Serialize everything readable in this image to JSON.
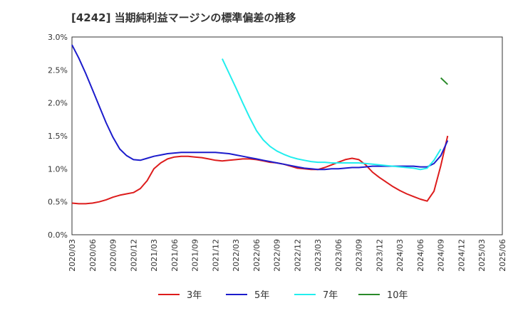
{
  "chart_data": {
    "type": "line",
    "title": "[4242]  当期純利益マージンの標準偏差の推移",
    "xlabel": "",
    "ylabel": "",
    "ylim": [
      0,
      3.0
    ],
    "y_ticks": [
      "0.0%",
      "0.5%",
      "1.0%",
      "1.5%",
      "2.0%",
      "2.5%",
      "3.0%"
    ],
    "y_tick_values": [
      0,
      0.5,
      1.0,
      1.5,
      2.0,
      2.5,
      3.0
    ],
    "x_ticks": [
      "2020/03",
      "2020/06",
      "2020/09",
      "2020/12",
      "2021/03",
      "2021/06",
      "2021/09",
      "2021/12",
      "2022/03",
      "2022/06",
      "2022/09",
      "2022/12",
      "2023/03",
      "2023/06",
      "2023/09",
      "2023/12",
      "2024/03",
      "2024/06",
      "2024/09",
      "2024/12",
      "2025/03",
      "2025/06"
    ],
    "grid": true,
    "legend_position": "bottom",
    "series": [
      {
        "name": "3年",
        "color": "#dd1c1c",
        "start_index": 0,
        "values": [
          0.48,
          0.47,
          0.47,
          0.48,
          0.5,
          0.53,
          0.57,
          0.6,
          0.62,
          0.64,
          0.7,
          0.82,
          1.0,
          1.09,
          1.15,
          1.18,
          1.19,
          1.19,
          1.18,
          1.17,
          1.15,
          1.13,
          1.12,
          1.13,
          1.14,
          1.15,
          1.15,
          1.14,
          1.12,
          1.1,
          1.09,
          1.07,
          1.04,
          1.01,
          1.0,
          0.99,
          0.99,
          1.02,
          1.06,
          1.1,
          1.14,
          1.16,
          1.14,
          1.06,
          0.95,
          0.87,
          0.8,
          0.73,
          0.67,
          0.62,
          0.58,
          0.54,
          0.51,
          0.66,
          1.05,
          1.5
        ]
      },
      {
        "name": "5年",
        "color": "#1c1ccc",
        "start_index": 0,
        "values": [
          2.88,
          2.68,
          2.45,
          2.2,
          1.95,
          1.7,
          1.48,
          1.3,
          1.2,
          1.14,
          1.13,
          1.16,
          1.19,
          1.21,
          1.23,
          1.24,
          1.25,
          1.25,
          1.25,
          1.25,
          1.25,
          1.25,
          1.24,
          1.23,
          1.21,
          1.19,
          1.17,
          1.15,
          1.13,
          1.11,
          1.09,
          1.07,
          1.05,
          1.03,
          1.01,
          1.0,
          0.99,
          0.99,
          1.0,
          1.0,
          1.01,
          1.02,
          1.02,
          1.03,
          1.04,
          1.04,
          1.04,
          1.04,
          1.04,
          1.04,
          1.04,
          1.03,
          1.03,
          1.08,
          1.2,
          1.43
        ]
      },
      {
        "name": "7年",
        "color": "#22eeee",
        "start_index": 22,
        "values": [
          2.67,
          2.45,
          2.23,
          2.0,
          1.78,
          1.58,
          1.44,
          1.34,
          1.27,
          1.22,
          1.18,
          1.15,
          1.13,
          1.11,
          1.1,
          1.1,
          1.09,
          1.09,
          1.09,
          1.09,
          1.09,
          1.08,
          1.07,
          1.06,
          1.05,
          1.04,
          1.03,
          1.02,
          1.01,
          0.99,
          1.01,
          1.13,
          1.3
        ]
      },
      {
        "name": "10年",
        "color": "#2a8a2a",
        "start_index": 54,
        "values": [
          2.38,
          2.28
        ]
      }
    ]
  }
}
